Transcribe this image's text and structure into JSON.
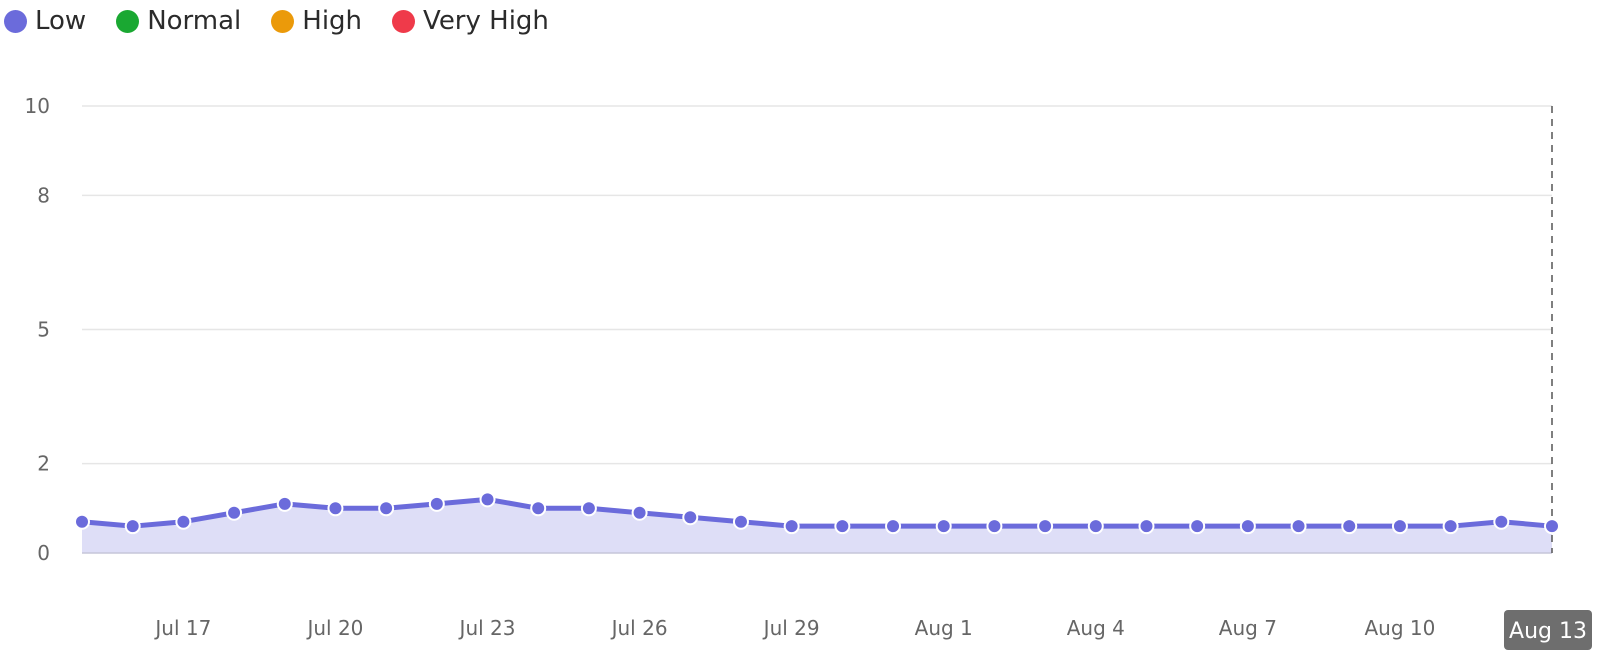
{
  "legend": [
    {
      "label": "Low",
      "color": "#6b6bdb"
    },
    {
      "label": "Normal",
      "color": "#1aa832"
    },
    {
      "label": "High",
      "color": "#eb9a0a"
    },
    {
      "label": "Very High",
      "color": "#ef3a4a"
    }
  ],
  "chart_data": {
    "type": "area",
    "x": [
      "Jul 15",
      "Jul 16",
      "Jul 17",
      "Jul 18",
      "Jul 19",
      "Jul 20",
      "Jul 21",
      "Jul 22",
      "Jul 23",
      "Jul 24",
      "Jul 25",
      "Jul 26",
      "Jul 27",
      "Jul 28",
      "Jul 29",
      "Jul 30",
      "Jul 31",
      "Aug 1",
      "Aug 2",
      "Aug 3",
      "Aug 4",
      "Aug 5",
      "Aug 6",
      "Aug 7",
      "Aug 8",
      "Aug 9",
      "Aug 10",
      "Aug 11",
      "Aug 12",
      "Aug 13"
    ],
    "series": [
      {
        "name": "Low",
        "color": "#6b6bdb",
        "values": [
          0.7,
          0.6,
          0.7,
          0.9,
          1.1,
          1.0,
          1.0,
          1.1,
          1.2,
          1.0,
          1.0,
          0.9,
          0.8,
          0.7,
          0.6,
          0.6,
          0.6,
          0.6,
          0.6,
          0.6,
          0.6,
          0.6,
          0.6,
          0.6,
          0.6,
          0.6,
          0.6,
          0.6,
          0.7,
          0.6
        ]
      }
    ],
    "y_ticks": [
      0,
      2,
      5,
      8,
      10
    ],
    "x_ticks": [
      "Jul 17",
      "Jul 20",
      "Jul 23",
      "Jul 26",
      "Jul 29",
      "Aug 1",
      "Aug 4",
      "Aug 7",
      "Aug 10"
    ],
    "highlight_label": "Aug 13",
    "ylim": [
      0,
      10
    ],
    "grid": true,
    "legend_position": "top-left"
  }
}
